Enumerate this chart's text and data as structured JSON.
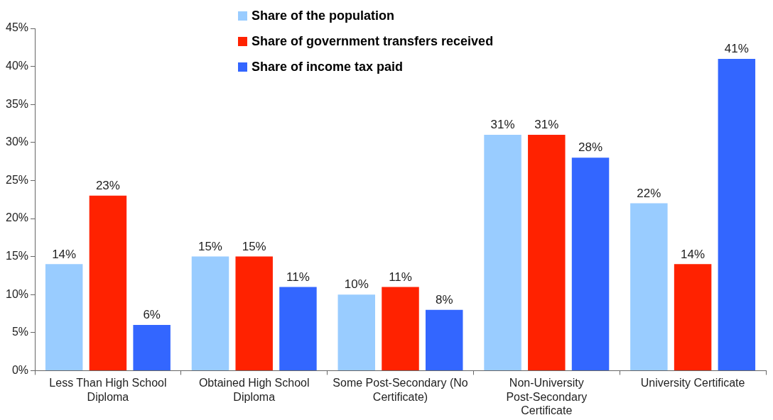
{
  "chart_data": {
    "type": "bar",
    "categories": [
      "Less Than High School Diploma",
      "Obtained High School Diploma",
      "Some Post-Secondary (No Certificate)",
      "Non-University Post-Secondary Certificate",
      "University Certificate"
    ],
    "series": [
      {
        "name": "Share of the population",
        "color": "#99ccff",
        "values": [
          14,
          15,
          10,
          31,
          22
        ],
        "value_labels": [
          "14%",
          "15%",
          "10%",
          "31%",
          "22%"
        ]
      },
      {
        "name": "Share of government transfers received",
        "color": "#ff2200",
        "values": [
          23,
          15,
          11,
          31,
          14
        ],
        "value_labels": [
          "23%",
          "15%",
          "11%",
          "31%",
          "14%"
        ]
      },
      {
        "name": "Share of income tax paid",
        "color": "#3366ff",
        "values": [
          6,
          11,
          8,
          28,
          41
        ],
        "value_labels": [
          "6%",
          "11%",
          "8%",
          "28%",
          "41%"
        ]
      }
    ],
    "ylim": [
      0,
      45
    ],
    "yticks": [
      {
        "value": 0,
        "label": "0%"
      },
      {
        "value": 5,
        "label": "5%"
      },
      {
        "value": 10,
        "label": "10%"
      },
      {
        "value": 15,
        "label": "15%"
      },
      {
        "value": 20,
        "label": "20%"
      },
      {
        "value": 25,
        "label": "25%"
      },
      {
        "value": 30,
        "label": "30%"
      },
      {
        "value": 35,
        "label": "35%"
      },
      {
        "value": 40,
        "label": "40%"
      },
      {
        "value": 45,
        "label": "45%"
      }
    ],
    "grid": false,
    "legend": "top"
  }
}
